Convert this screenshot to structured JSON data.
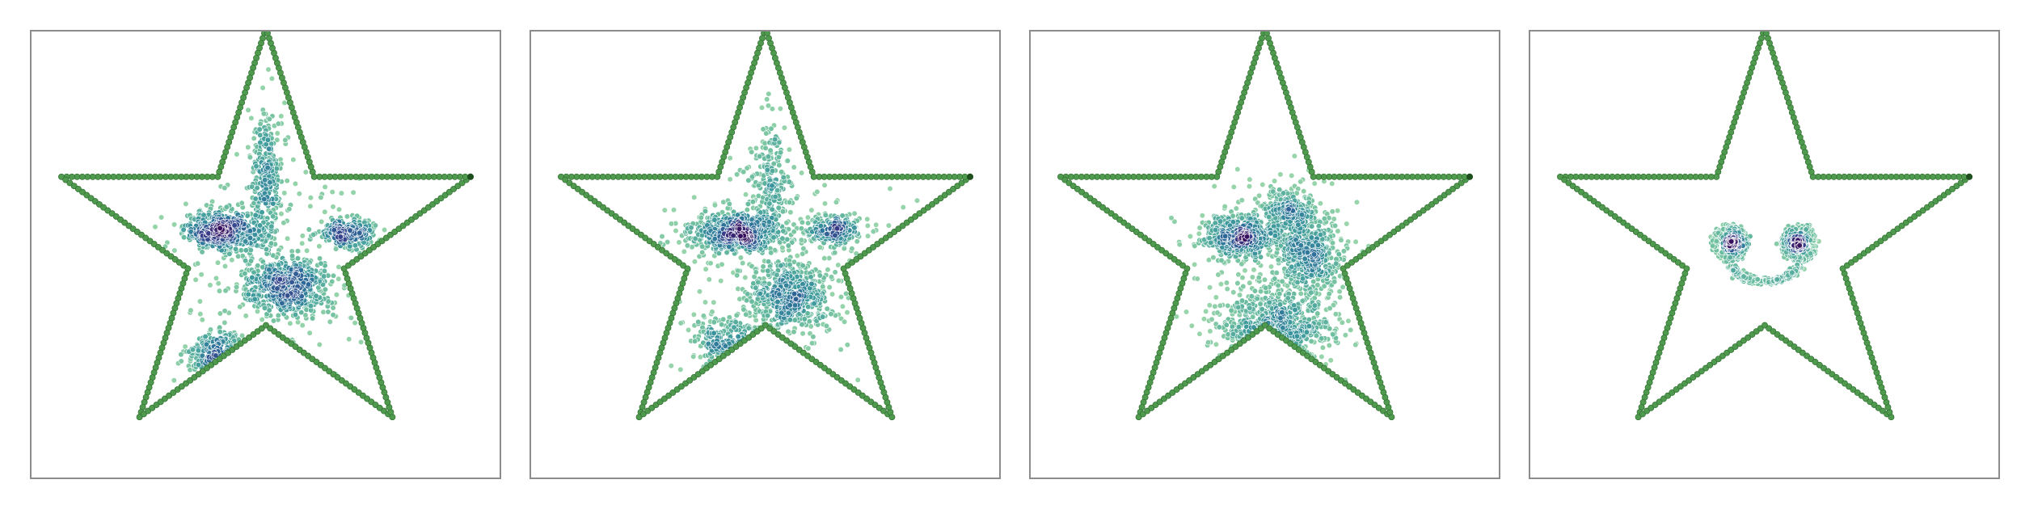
{
  "chart_data": [
    {
      "type": "scatter",
      "grid": false,
      "border_color": "#4f9a4f",
      "point_colormap": [
        "#a7dcaf",
        "#6fbfa0",
        "#3e9a9d",
        "#2d6f9a",
        "#383f8a",
        "#38125e"
      ],
      "clusters": [
        {
          "center": [
            -0.2,
            0.06
          ],
          "spread": [
            0.09,
            0.045
          ],
          "weight": 0.26
        },
        {
          "center": [
            0.1,
            -0.2
          ],
          "spread": [
            0.1,
            0.07
          ],
          "weight": 0.28
        },
        {
          "center": [
            0.38,
            0.05
          ],
          "spread": [
            0.07,
            0.035
          ],
          "weight": 0.12
        },
        {
          "center": [
            -0.22,
            -0.52
          ],
          "spread": [
            0.07,
            0.05
          ],
          "weight": 0.1
        },
        {
          "center": [
            0.0,
            0.3
          ],
          "spread": [
            0.035,
            0.18
          ],
          "weight": 0.14
        },
        {
          "center": [
            0.05,
            -0.05
          ],
          "spread": [
            0.28,
            0.28
          ],
          "weight": 0.1
        }
      ]
    },
    {
      "type": "scatter",
      "grid": false,
      "border_color": "#4f9a4f",
      "point_colormap": [
        "#a7dcaf",
        "#6fbfa0",
        "#3e9a9d",
        "#2d6f9a",
        "#383f8a",
        "#38125e"
      ],
      "clusters": [
        {
          "center": [
            -0.15,
            0.05
          ],
          "spread": [
            0.1,
            0.045
          ],
          "weight": 0.3
        },
        {
          "center": [
            0.12,
            -0.25
          ],
          "spread": [
            0.1,
            0.08
          ],
          "weight": 0.26
        },
        {
          "center": [
            0.32,
            0.06
          ],
          "spread": [
            0.07,
            0.035
          ],
          "weight": 0.12
        },
        {
          "center": [
            -0.18,
            -0.46
          ],
          "spread": [
            0.08,
            0.06
          ],
          "weight": 0.1
        },
        {
          "center": [
            0.02,
            0.28
          ],
          "spread": [
            0.05,
            0.14
          ],
          "weight": 0.12
        },
        {
          "center": [
            0.05,
            -0.05
          ],
          "spread": [
            0.28,
            0.26
          ],
          "weight": 0.1
        }
      ]
    },
    {
      "type": "scatter",
      "grid": false,
      "border_color": "#4f9a4f",
      "point_colormap": [
        "#a7dcaf",
        "#6fbfa0",
        "#3e9a9d",
        "#2d6f9a",
        "#383f8a",
        "#38125e"
      ],
      "clusters": [
        {
          "center": [
            -0.12,
            0.03
          ],
          "spread": [
            0.08,
            0.05
          ],
          "weight": 0.26
        },
        {
          "center": [
            0.2,
            -0.05
          ],
          "spread": [
            0.08,
            0.1
          ],
          "weight": 0.26
        },
        {
          "center": [
            0.05,
            -0.4
          ],
          "spread": [
            0.13,
            0.08
          ],
          "weight": 0.24
        },
        {
          "center": [
            0.1,
            0.15
          ],
          "spread": [
            0.06,
            0.06
          ],
          "weight": 0.12
        },
        {
          "center": [
            0.05,
            -0.15
          ],
          "spread": [
            0.2,
            0.22
          ],
          "weight": 0.12
        }
      ]
    },
    {
      "type": "scatter",
      "grid": false,
      "border_color": "#4f9a4f",
      "point_colormap": [
        "#a7dcaf",
        "#6fbfa0",
        "#3e9a9d",
        "#2d6f9a",
        "#383f8a",
        "#38125e"
      ],
      "clusters": [
        {
          "center": [
            -0.15,
            0.0
          ],
          "spread": [
            0.022,
            0.022
          ],
          "weight": 0.2
        },
        {
          "center": [
            0.15,
            0.0
          ],
          "spread": [
            0.022,
            0.022
          ],
          "weight": 0.2
        }
      ],
      "rings": [
        {
          "center": [
            -0.16,
            0.0
          ],
          "radius": 0.075,
          "weight": 0.18
        },
        {
          "center": [
            0.16,
            0.0
          ],
          "radius": 0.075,
          "weight": 0.18
        }
      ],
      "smile": {
        "center": [
          0.0,
          -0.18
        ],
        "radius": 0.17,
        "start_angle_deg": 200,
        "end_angle_deg": 340,
        "weight": 0.24
      }
    }
  ]
}
